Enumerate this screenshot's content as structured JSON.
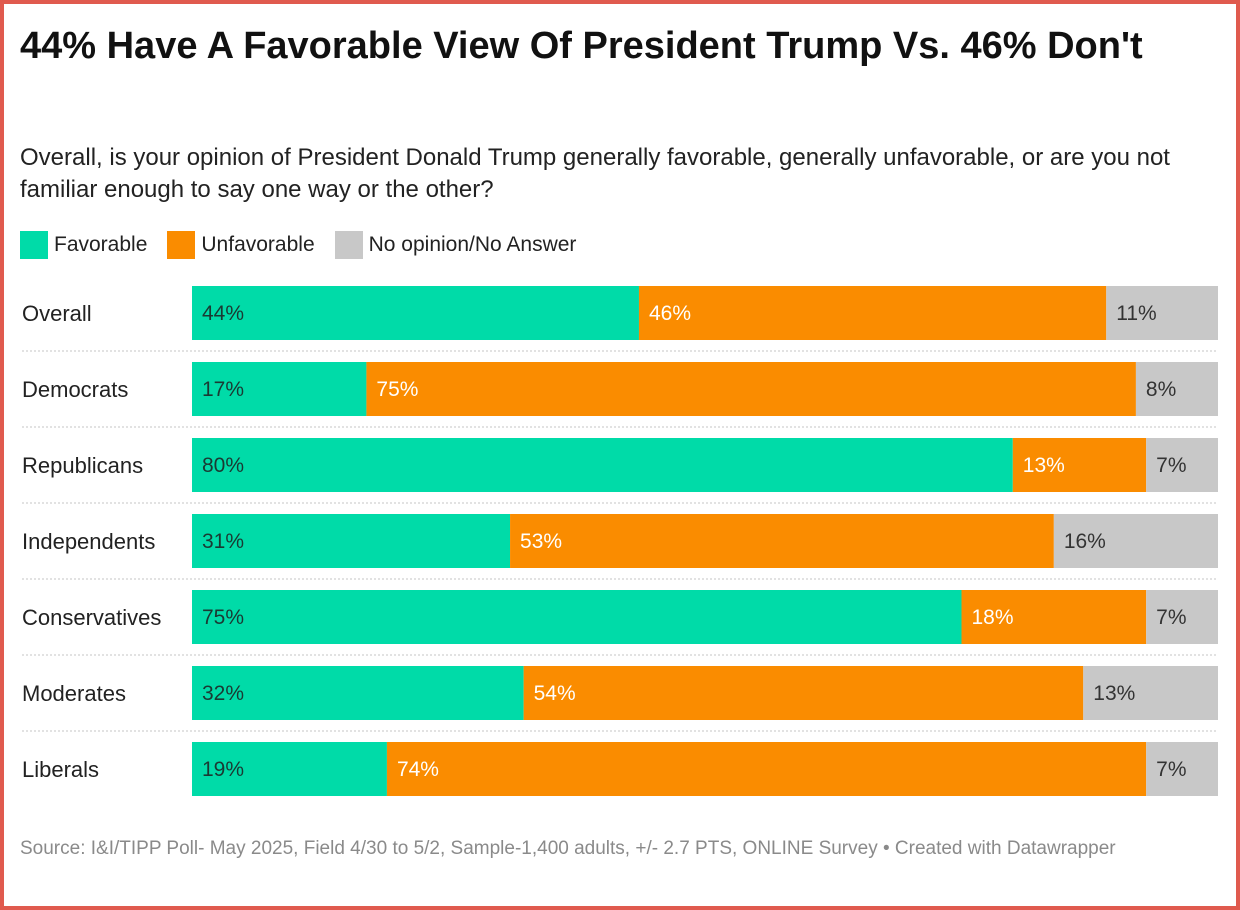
{
  "title": "44% Have A Favorable View Of President Trump Vs. 46% Don't",
  "subtitle": "Overall, is your opinion of President Donald Trump generally favorable, generally unfavorable, or are you not familiar enough to say one way or the other?",
  "legend": [
    {
      "label": "Favorable",
      "color": "#00dba8"
    },
    {
      "label": "Unfavorable",
      "color": "#fa8c00"
    },
    {
      "label": "No opinion/No Answer",
      "color": "#c8c8c8"
    }
  ],
  "footer": "Source: I&I/TIPP Poll- May 2025, Field 4/30 to 5/2, Sample-1,400 adults, +/- 2.7 PTS, ONLINE Survey • Created with Datawrapper",
  "chart_data": {
    "type": "bar",
    "orientation": "horizontal",
    "stacked": true,
    "categories": [
      "Overall",
      "Democrats",
      "Republicans",
      "Independents",
      "Conservatives",
      "Moderates",
      "Liberals"
    ],
    "series": [
      {
        "name": "Favorable",
        "color": "#00dba8",
        "label_color": "#1a3a33",
        "values": [
          44,
          17,
          80,
          31,
          75,
          32,
          19
        ]
      },
      {
        "name": "Unfavorable",
        "color": "#fa8c00",
        "label_color": "#ffffff",
        "values": [
          46,
          75,
          13,
          53,
          18,
          54,
          74
        ]
      },
      {
        "name": "No opinion/No Answer",
        "color": "#c8c8c8",
        "label_color": "#333333",
        "values": [
          11,
          8,
          7,
          16,
          7,
          13,
          7
        ]
      }
    ],
    "value_suffix": "%"
  }
}
